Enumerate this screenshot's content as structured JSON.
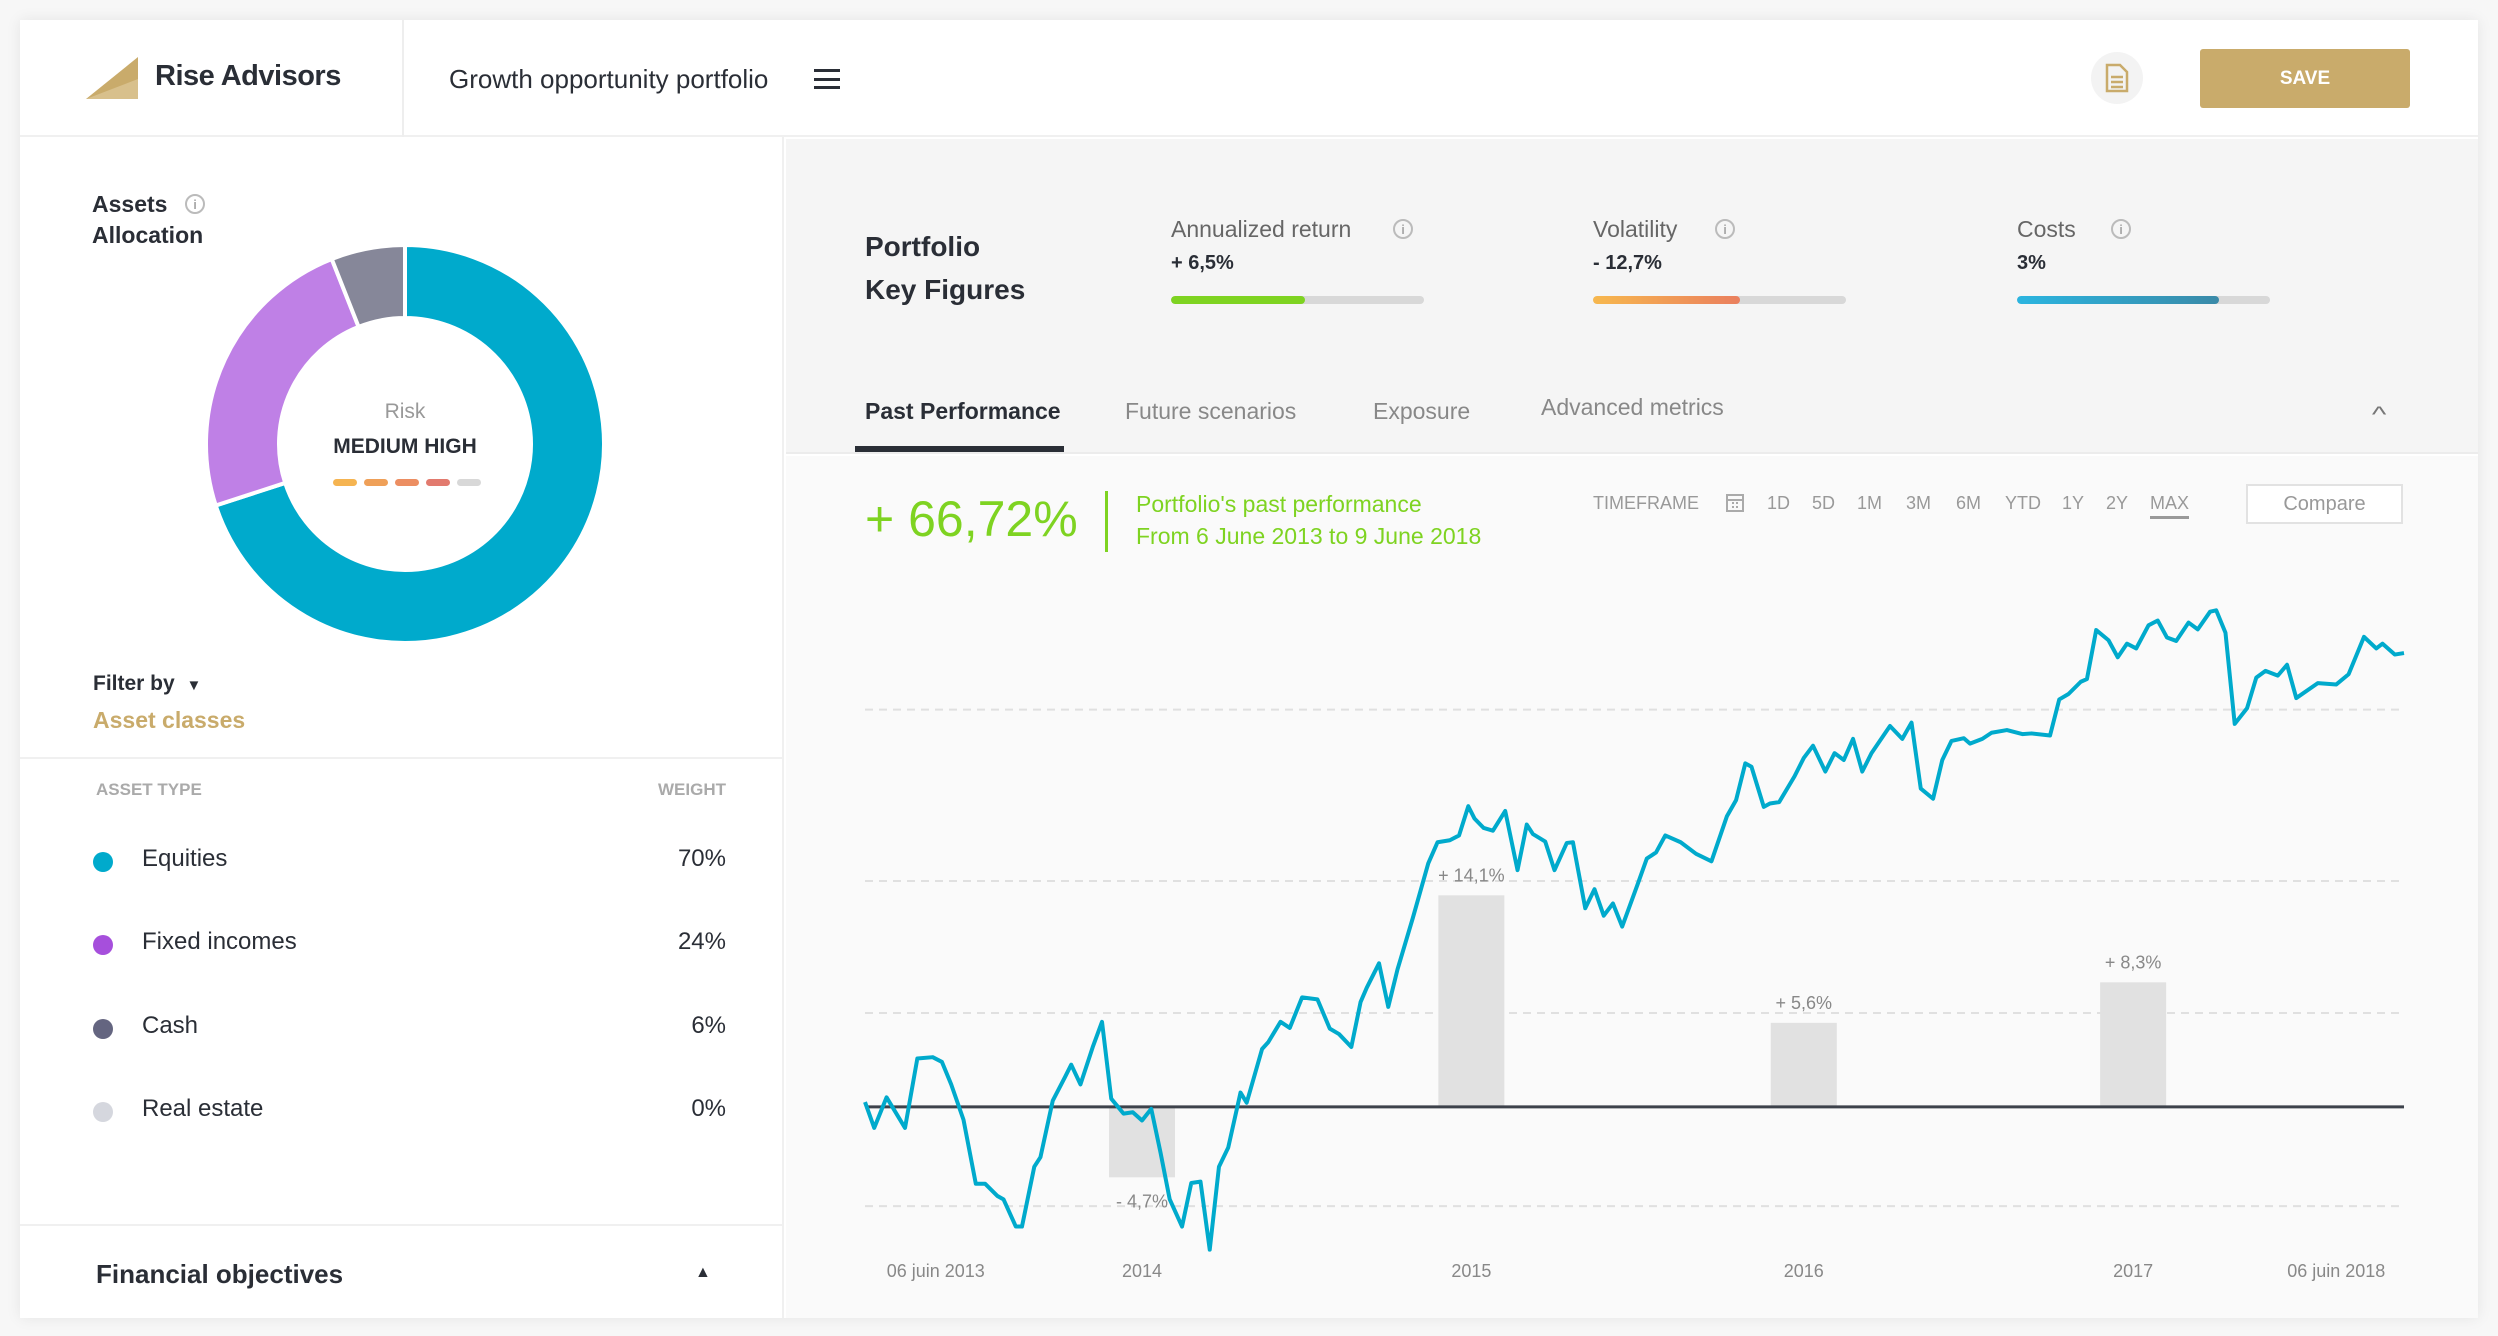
{
  "header": {
    "brand": "Rise Advisors",
    "portfolio_title": "Growth opportunity portfolio",
    "save_label": "SAVE"
  },
  "colors": {
    "accent": "#c9ab6b",
    "green": "#7ed321",
    "teal": "#00aacc"
  },
  "allocation": {
    "title_line1": "Assets",
    "title_line2": "Allocation",
    "info": "i",
    "risk_label": "Risk",
    "risk_value": "MEDIUM HIGH",
    "risk_level": 4,
    "risk_max": 5,
    "filter_label": "Filter by",
    "filter_value": "Asset classes",
    "col_type": "ASSET TYPE",
    "col_weight": "WEIGHT",
    "rows": [
      {
        "label": "Equities",
        "weight": "70%",
        "value": 70,
        "color": "#00aacc",
        "dot": "#00aacc"
      },
      {
        "label": "Fixed incomes",
        "weight": "24%",
        "value": 24,
        "color": "#bf80e6",
        "dot": "#a64fdc"
      },
      {
        "label": "Cash",
        "weight": "6%",
        "value": 6,
        "color": "#868799",
        "dot": "#646580"
      },
      {
        "label": "Real estate",
        "weight": "0%",
        "value": 0,
        "color": "#d5d7de",
        "dot": "#d5d7de"
      }
    ],
    "objectives_label": "Financial objectives"
  },
  "key_figures": {
    "title_line1": "Portfolio",
    "title_line2": "Key Figures",
    "items": [
      {
        "label": "Annualized return",
        "value": "+ 6,5%",
        "fill": 0.53
      },
      {
        "label": "Volatility",
        "value": "- 12,7%",
        "fill": 0.58
      },
      {
        "label": "Costs",
        "value": "3%",
        "fill": 0.8
      }
    ]
  },
  "tabs": [
    "Past Performance",
    "Future scenarios",
    "Exposure",
    "Advanced metrics"
  ],
  "performance": {
    "total": "+ 66,72%",
    "subtitle": "Portfolio's past performance",
    "range": "From 6 June 2013 to 9 June 2018",
    "timeframe_label": "TIMEFRAME",
    "timeframes": [
      "1D",
      "5D",
      "1M",
      "3M",
      "6M",
      "YTD",
      "1Y",
      "2Y",
      "MAX"
    ],
    "selected_timeframe": "MAX",
    "compare_label": "Compare"
  },
  "chart_data": {
    "type": "line",
    "xlim": [
      2013.43,
      2018.43
    ],
    "ylim": [
      -28.4,
      80.4
    ],
    "ygrid": [
      58.4,
      33.2,
      13.8,
      -14.6
    ],
    "x_ticks": [
      {
        "label": "06 juin 2013",
        "x": 2013.66
      },
      {
        "label": "2014",
        "x": 2014.33
      },
      {
        "label": "2015",
        "x": 2015.4
      },
      {
        "label": "2016",
        "x": 2016.48
      },
      {
        "label": "2017",
        "x": 2017.55
      },
      {
        "label": "06 juin 2018",
        "x": 2018.21
      }
    ],
    "annual_returns": [
      {
        "year": "2014",
        "x": 2014.33,
        "value": -4.7,
        "label": "- 4,7%"
      },
      {
        "year": "2015",
        "x": 2015.4,
        "value": 14.1,
        "label": "+ 14,1%"
      },
      {
        "year": "2016",
        "x": 2016.48,
        "value": 5.6,
        "label": "+ 5,6%"
      },
      {
        "year": "2017",
        "x": 2017.55,
        "value": 8.3,
        "label": "+ 8,3%"
      }
    ],
    "series": [
      {
        "name": "Portfolio",
        "color": "#00aacc",
        "points": [
          [
            2013.43,
            0.7
          ],
          [
            2013.46,
            -3.1
          ],
          [
            2013.5,
            1.4
          ],
          [
            2013.56,
            -3.1
          ],
          [
            2013.6,
            7.1
          ],
          [
            2013.65,
            7.3
          ],
          [
            2013.68,
            6.6
          ],
          [
            2013.71,
            3.3
          ],
          [
            2013.75,
            -1.9
          ],
          [
            2013.79,
            -11.3
          ],
          [
            2013.82,
            -11.3
          ],
          [
            2013.86,
            -13.1
          ],
          [
            2013.88,
            -13.6
          ],
          [
            2013.92,
            -17.6
          ],
          [
            2013.94,
            -17.6
          ],
          [
            2013.98,
            -8.8
          ],
          [
            2014.0,
            -7.4
          ],
          [
            2014.04,
            0.9
          ],
          [
            2014.08,
            4.4
          ],
          [
            2014.1,
            6.2
          ],
          [
            2014.13,
            3.3
          ],
          [
            2014.17,
            8.8
          ],
          [
            2014.2,
            12.5
          ],
          [
            2014.23,
            1.2
          ],
          [
            2014.27,
            -1.0
          ],
          [
            2014.3,
            -0.8
          ],
          [
            2014.33,
            -2.0
          ],
          [
            2014.36,
            -0.3
          ],
          [
            2014.39,
            -6.7
          ],
          [
            2014.42,
            -13.6
          ],
          [
            2014.46,
            -17.6
          ],
          [
            2014.49,
            -11.2
          ],
          [
            2014.52,
            -11.0
          ],
          [
            2014.55,
            -21.0
          ],
          [
            2014.58,
            -8.8
          ],
          [
            2014.61,
            -6.0
          ],
          [
            2014.65,
            2.1
          ],
          [
            2014.67,
            0.6
          ],
          [
            2014.72,
            8.5
          ],
          [
            2014.74,
            9.5
          ],
          [
            2014.78,
            12.5
          ],
          [
            2014.81,
            11.6
          ],
          [
            2014.85,
            16.1
          ],
          [
            2014.9,
            15.8
          ],
          [
            2014.94,
            11.5
          ],
          [
            2014.97,
            10.7
          ],
          [
            2015.01,
            8.8
          ],
          [
            2015.04,
            15.4
          ],
          [
            2015.06,
            17.5
          ],
          [
            2015.1,
            21.1
          ],
          [
            2015.13,
            14.7
          ],
          [
            2015.16,
            20.2
          ],
          [
            2015.21,
            27.8
          ],
          [
            2015.26,
            35.8
          ],
          [
            2015.29,
            38.9
          ],
          [
            2015.33,
            39.2
          ],
          [
            2015.36,
            39.9
          ],
          [
            2015.39,
            44.2
          ],
          [
            2015.41,
            42.4
          ],
          [
            2015.44,
            41.0
          ],
          [
            2015.47,
            40.6
          ],
          [
            2015.51,
            43.5
          ],
          [
            2015.55,
            34.8
          ],
          [
            2015.58,
            41.5
          ],
          [
            2015.6,
            40.1
          ],
          [
            2015.64,
            39.0
          ],
          [
            2015.67,
            34.8
          ],
          [
            2015.71,
            38.8
          ],
          [
            2015.73,
            38.9
          ],
          [
            2015.77,
            29.2
          ],
          [
            2015.8,
            32.0
          ],
          [
            2015.83,
            28.1
          ],
          [
            2015.86,
            29.9
          ],
          [
            2015.89,
            26.5
          ],
          [
            2015.94,
            32.7
          ],
          [
            2015.97,
            36.5
          ],
          [
            2016.0,
            37.4
          ],
          [
            2016.03,
            39.9
          ],
          [
            2016.08,
            38.9
          ],
          [
            2016.13,
            37.2
          ],
          [
            2016.18,
            36.1
          ],
          [
            2016.23,
            42.7
          ],
          [
            2016.26,
            45.1
          ],
          [
            2016.29,
            50.5
          ],
          [
            2016.31,
            50.0
          ],
          [
            2016.35,
            44.1
          ],
          [
            2016.37,
            44.6
          ],
          [
            2016.4,
            44.8
          ],
          [
            2016.45,
            48.6
          ],
          [
            2016.48,
            51.3
          ],
          [
            2016.51,
            53.1
          ],
          [
            2016.55,
            49.3
          ],
          [
            2016.58,
            52.0
          ],
          [
            2016.61,
            51.0
          ],
          [
            2016.64,
            54.1
          ],
          [
            2016.67,
            49.3
          ],
          [
            2016.7,
            52.0
          ],
          [
            2016.76,
            56.0
          ],
          [
            2016.8,
            54.1
          ],
          [
            2016.83,
            56.5
          ],
          [
            2016.86,
            46.8
          ],
          [
            2016.9,
            45.3
          ],
          [
            2016.93,
            51.0
          ],
          [
            2016.96,
            53.8
          ],
          [
            2017.0,
            54.2
          ],
          [
            2017.02,
            53.4
          ],
          [
            2017.06,
            54.1
          ],
          [
            2017.09,
            55.0
          ],
          [
            2017.14,
            55.4
          ],
          [
            2017.19,
            54.8
          ],
          [
            2017.22,
            54.9
          ],
          [
            2017.28,
            54.6
          ],
          [
            2017.31,
            59.9
          ],
          [
            2017.34,
            60.7
          ],
          [
            2017.38,
            62.5
          ],
          [
            2017.4,
            62.9
          ],
          [
            2017.43,
            70.1
          ],
          [
            2017.47,
            68.6
          ],
          [
            2017.5,
            66.1
          ],
          [
            2017.53,
            68.1
          ],
          [
            2017.56,
            67.4
          ],
          [
            2017.6,
            70.8
          ],
          [
            2017.63,
            71.5
          ],
          [
            2017.66,
            69.0
          ],
          [
            2017.69,
            68.5
          ],
          [
            2017.73,
            71.2
          ],
          [
            2017.76,
            70.2
          ],
          [
            2017.8,
            72.8
          ],
          [
            2017.82,
            73.0
          ],
          [
            2017.85,
            69.7
          ],
          [
            2017.88,
            56.3
          ],
          [
            2017.92,
            58.6
          ],
          [
            2017.95,
            63.1
          ],
          [
            2017.98,
            64.1
          ],
          [
            2018.02,
            63.4
          ],
          [
            2018.05,
            65.0
          ],
          [
            2018.08,
            60.1
          ],
          [
            2018.15,
            62.3
          ],
          [
            2018.21,
            62.1
          ],
          [
            2018.25,
            63.6
          ],
          [
            2018.3,
            69.1
          ],
          [
            2018.34,
            67.4
          ],
          [
            2018.36,
            68.1
          ],
          [
            2018.4,
            66.5
          ],
          [
            2018.43,
            66.72
          ]
        ]
      }
    ]
  }
}
